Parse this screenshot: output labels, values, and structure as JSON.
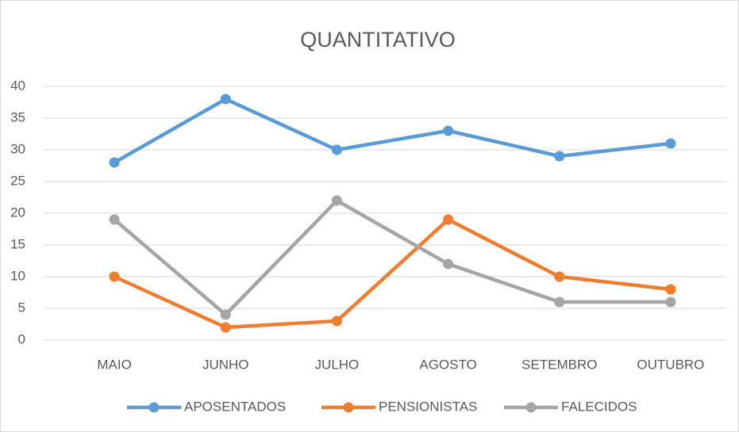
{
  "chart_data": {
    "type": "line",
    "title": "QUANTITATIVO",
    "categories": [
      "MAIO",
      "JUNHO",
      "JULHO",
      "AGOSTO",
      "SETEMBRO",
      "OUTUBRO"
    ],
    "series": [
      {
        "name": "APOSENTADOS",
        "color": "#5b9bd5",
        "values": [
          28,
          38,
          30,
          33,
          29,
          31
        ]
      },
      {
        "name": "PENSIONISTAS",
        "color": "#ed7d31",
        "values": [
          10,
          2,
          3,
          19,
          10,
          8
        ]
      },
      {
        "name": "FALECIDOS",
        "color": "#a5a5a5",
        "values": [
          19,
          4,
          22,
          12,
          6,
          6
        ]
      }
    ],
    "ylim": [
      0,
      40
    ],
    "yticks": [
      0,
      5,
      10,
      15,
      20,
      25,
      30,
      35,
      40
    ],
    "grid": true,
    "legend": "bottom"
  }
}
